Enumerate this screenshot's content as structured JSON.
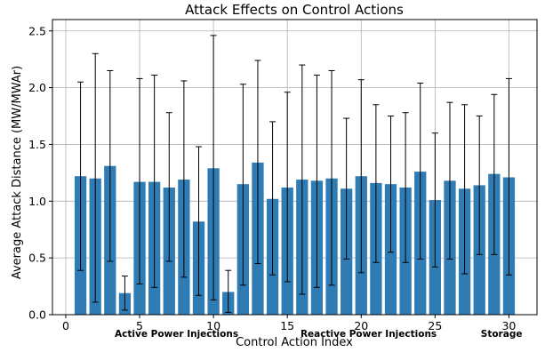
{
  "chart_data": {
    "type": "bar",
    "title": "Attack Effects on Control Actions",
    "xlabel": "Control Action Index",
    "ylabel": "Average Attack Distance (MW/MWAr)",
    "x": [
      1,
      2,
      3,
      4,
      5,
      6,
      7,
      8,
      9,
      10,
      11,
      12,
      13,
      14,
      15,
      16,
      17,
      18,
      19,
      20,
      21,
      22,
      23,
      24,
      25,
      26,
      27,
      28,
      29,
      30
    ],
    "values": [
      1.22,
      1.2,
      1.31,
      0.19,
      1.17,
      1.17,
      1.12,
      1.19,
      0.82,
      1.29,
      0.2,
      1.15,
      1.34,
      1.02,
      1.12,
      1.19,
      1.18,
      1.2,
      1.11,
      1.22,
      1.16,
      1.15,
      1.12,
      1.26,
      1.01,
      1.18,
      1.11,
      1.14,
      1.24,
      1.21
    ],
    "error_lower": [
      0.39,
      0.11,
      0.47,
      0.04,
      0.27,
      0.24,
      0.47,
      0.33,
      0.17,
      0.13,
      0.02,
      0.26,
      0.45,
      0.35,
      0.29,
      0.18,
      0.24,
      0.26,
      0.49,
      0.37,
      0.46,
      0.55,
      0.46,
      0.49,
      0.42,
      0.49,
      0.36,
      0.53,
      0.53,
      0.35
    ],
    "error_upper": [
      2.05,
      2.3,
      2.15,
      0.34,
      2.08,
      2.11,
      1.78,
      2.06,
      1.48,
      2.46,
      0.39,
      2.03,
      2.24,
      1.7,
      1.96,
      2.2,
      2.11,
      2.15,
      1.73,
      2.07,
      1.85,
      1.75,
      1.78,
      2.04,
      1.6,
      1.87,
      1.85,
      1.75,
      1.94,
      2.08
    ],
    "xlim": [
      -0.9,
      31.9
    ],
    "ylim": [
      0,
      2.6
    ],
    "xticks": [
      0,
      5,
      10,
      15,
      20,
      25,
      30
    ],
    "yticks": [
      0.0,
      0.5,
      1.0,
      1.5,
      2.0,
      2.5
    ],
    "grid": true,
    "bar_color": "#2f7bb4",
    "group_labels": [
      {
        "label": "Active Power Injections",
        "x": 7.5
      },
      {
        "label": "Reactive Power Injections",
        "x": 20.5
      },
      {
        "label": "Storage",
        "x": 29.5
      }
    ]
  }
}
